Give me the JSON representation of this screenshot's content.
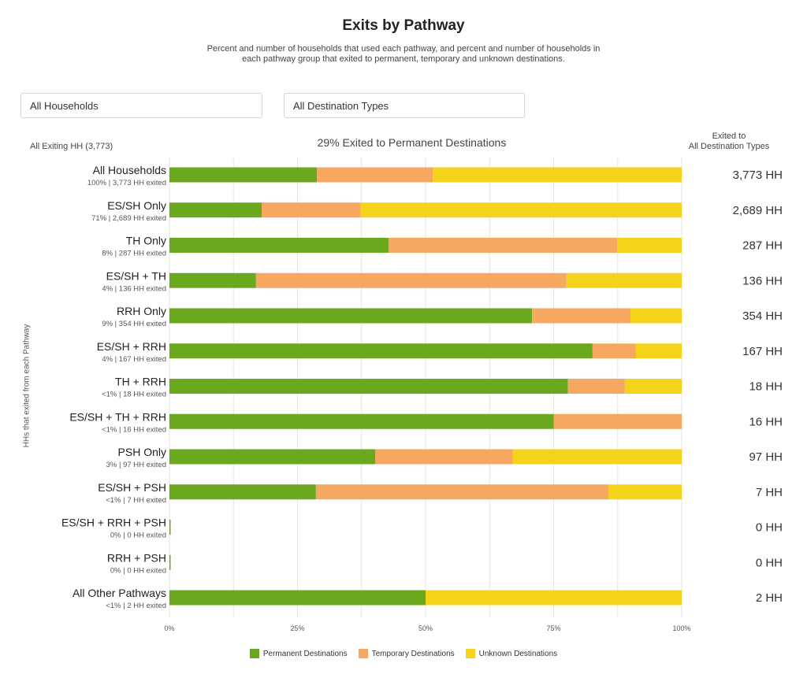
{
  "title": "Exits by Pathway",
  "subtitle": "Percent and number of households that used each pathway, and percent and number of households in each pathway group that exited to permanent, temporary and unknown destinations.",
  "filters": {
    "household": "All Households",
    "destination": "All Destination Types"
  },
  "exiting_label": "All Exiting HH (3,773)",
  "perm_summary": "29% Exited to Permanent Destinations",
  "exited_header_line1": "Exited to",
  "exited_header_line2": "All Destination Types",
  "y_axis_label": "HHs that exited from each Pathway",
  "colors": {
    "permanent": "#6aa81e",
    "temporary": "#f6a760",
    "unknown": "#f5d31a",
    "grid": "#e3e3e3"
  },
  "chart_data": {
    "type": "bar",
    "orientation": "horizontal",
    "stacked": true,
    "xlim": [
      0,
      100
    ],
    "x_ticks": [
      "0%",
      "25%",
      "50%",
      "75%",
      "100%"
    ],
    "grid": true,
    "legend_position": "bottom",
    "categories": [
      {
        "name": "All Households",
        "sub": "100% | 3,773 HH exited",
        "total": "3,773 HH"
      },
      {
        "name": "ES/SH Only",
        "sub": "71% | 2,689 HH exited",
        "total": "2,689 HH"
      },
      {
        "name": "TH Only",
        "sub": "8% | 287 HH exited",
        "total": "287 HH"
      },
      {
        "name": "ES/SH + TH",
        "sub": "4% | 136 HH exited",
        "total": "136 HH"
      },
      {
        "name": "RRH Only",
        "sub": "9% | 354 HH exited",
        "total": "354 HH"
      },
      {
        "name": "ES/SH + RRH",
        "sub": "4% | 167 HH exited",
        "total": "167 HH"
      },
      {
        "name": "TH + RRH",
        "sub": "<1% | 18 HH exited",
        "total": "18 HH"
      },
      {
        "name": "ES/SH + TH + RRH",
        "sub": "<1% | 16 HH exited",
        "total": "16 HH"
      },
      {
        "name": "PSH Only",
        "sub": "3% | 97 HH exited",
        "total": "97 HH"
      },
      {
        "name": "ES/SH + PSH",
        "sub": "<1% | 7 HH exited",
        "total": "7 HH"
      },
      {
        "name": "ES/SH + RRH + PSH",
        "sub": "0% | 0 HH exited",
        "total": "0 HH"
      },
      {
        "name": "RRH + PSH",
        "sub": "0% | 0 HH exited",
        "total": "0 HH"
      },
      {
        "name": "All Other Pathways",
        "sub": "<1% | 2 HH exited",
        "total": "2 HH"
      }
    ],
    "series": [
      {
        "name": "Permanent Destinations",
        "color_key": "permanent",
        "values": [
          28.8,
          18.0,
          42.8,
          16.9,
          70.8,
          82.6,
          77.8,
          75.0,
          40.2,
          28.6,
          0,
          0,
          50.0
        ]
      },
      {
        "name": "Temporary Destinations",
        "color_key": "temporary",
        "values": [
          22.6,
          19.3,
          44.6,
          60.6,
          19.2,
          8.4,
          11.1,
          25.0,
          26.8,
          57.1,
          0,
          0,
          0
        ]
      },
      {
        "name": "Unknown Destinations",
        "color_key": "unknown",
        "values": [
          48.6,
          62.7,
          12.6,
          22.5,
          10.0,
          9.0,
          11.1,
          0,
          33.0,
          14.3,
          0,
          0,
          50.0
        ]
      }
    ]
  }
}
